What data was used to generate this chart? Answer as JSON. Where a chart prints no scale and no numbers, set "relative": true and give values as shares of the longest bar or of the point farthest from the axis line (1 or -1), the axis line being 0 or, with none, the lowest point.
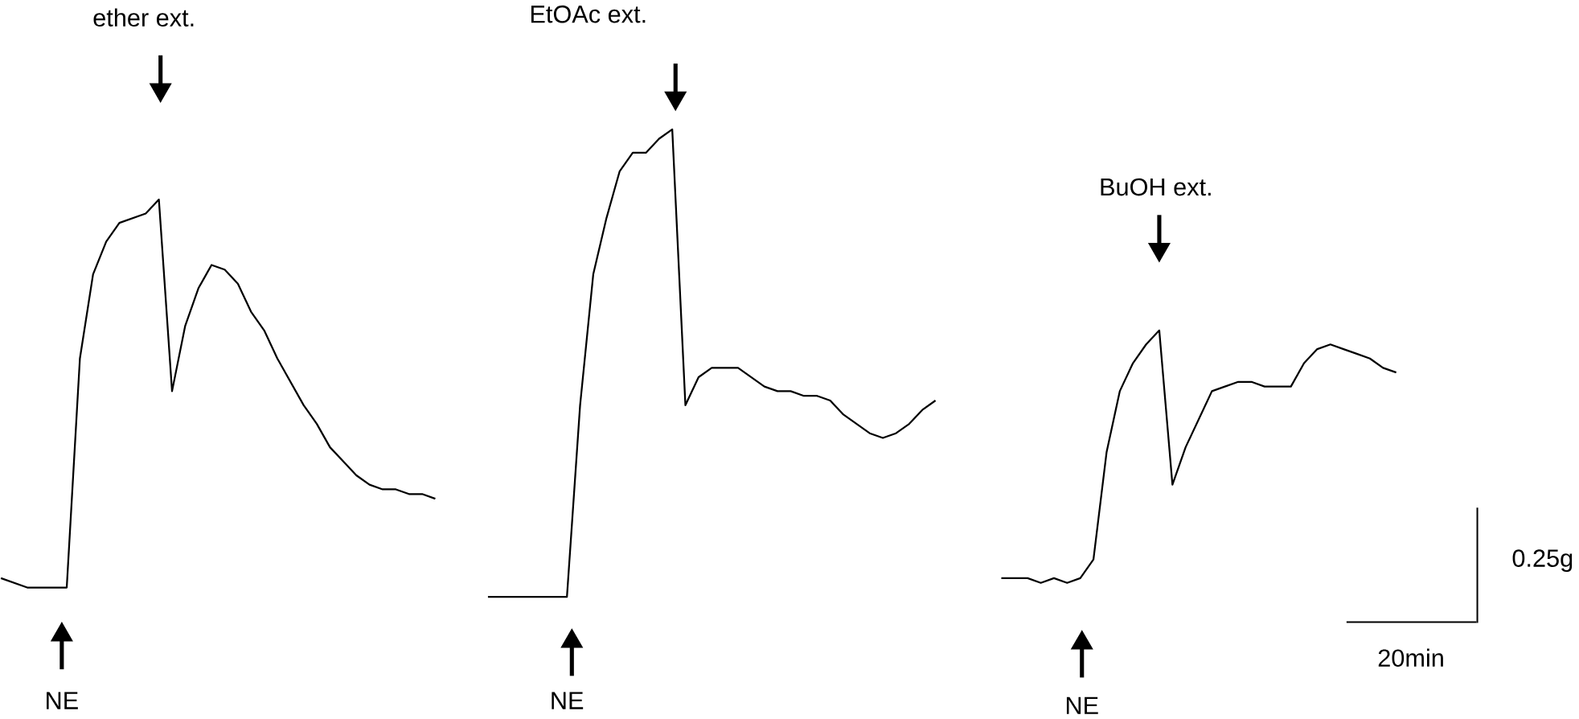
{
  "chart_data": {
    "type": "line",
    "relative": true,
    "marker": "none",
    "line_style": "solid",
    "categories": [
      null,
      null,
      null,
      null,
      null,
      null,
      null,
      null,
      null,
      null,
      null,
      null,
      null,
      null,
      null,
      null,
      null,
      null,
      null,
      null,
      null,
      null,
      null,
      null,
      null,
      null,
      null,
      null,
      null,
      null,
      null,
      null,
      null,
      null,
      null,
      null,
      null,
      null,
      null,
      null,
      null,
      null,
      null,
      null,
      null,
      null,
      null,
      null,
      null,
      null,
      null,
      null,
      null,
      null,
      null,
      null,
      null,
      null,
      null,
      null,
      null,
      null,
      null,
      null,
      null,
      null,
      null,
      null,
      null,
      null,
      null,
      null,
      null,
      null,
      null,
      null,
      null,
      null,
      null,
      null,
      null,
      null,
      null,
      null,
      null,
      null,
      null,
      null,
      null,
      null,
      null,
      null,
      null,
      null,
      null,
      null,
      null,
      null,
      null,
      null,
      null,
      null,
      null,
      null,
      null,
      null,
      null
    ],
    "series": [
      {
        "color": "#000000",
        "values": [
          0.04,
          0.03,
          0.02,
          0.02,
          0.02,
          0.02,
          0.51,
          0.69,
          0.76,
          0.8,
          0.81,
          0.82,
          0.85,
          0.44,
          0.58,
          0.66,
          0.71,
          0.7,
          0.67,
          0.61,
          0.57,
          0.51,
          0.46,
          0.41,
          0.37,
          0.32,
          0.29,
          0.26,
          0.24,
          0.23,
          0.23,
          0.22,
          0.22,
          0.21,
          null,
          null,
          null,
          null,
          null,
          null,
          null,
          null,
          null,
          null,
          null,
          null,
          null,
          null,
          null,
          null,
          null,
          null,
          null,
          null,
          null,
          null,
          null,
          null,
          null,
          null,
          null,
          null,
          null,
          null,
          null,
          null,
          null,
          null,
          null,
          null,
          null,
          null,
          null,
          null,
          null,
          null,
          null,
          null,
          null,
          null,
          null,
          null,
          null,
          null,
          null,
          null,
          null,
          null,
          null,
          null,
          null,
          null,
          null,
          null,
          null,
          null,
          null,
          null,
          null,
          null,
          null,
          null,
          null,
          null,
          null,
          null,
          null
        ]
      },
      {
        "color": "#000000",
        "values": [
          null,
          null,
          null,
          null,
          null,
          null,
          null,
          null,
          null,
          null,
          null,
          null,
          null,
          null,
          null,
          null,
          null,
          null,
          null,
          null,
          null,
          null,
          null,
          null,
          null,
          null,
          null,
          null,
          null,
          null,
          null,
          null,
          null,
          null,
          null,
          null,
          null,
          0.0,
          0.0,
          0.0,
          0.0,
          0.0,
          0.0,
          0.0,
          0.41,
          0.69,
          0.81,
          0.91,
          0.95,
          0.95,
          0.98,
          1.0,
          0.41,
          0.47,
          0.49,
          0.49,
          0.49,
          0.47,
          0.45,
          0.44,
          0.44,
          0.43,
          0.43,
          0.42,
          0.39,
          0.37,
          0.35,
          0.34,
          0.35,
          0.37,
          0.4,
          0.42,
          null,
          null,
          null,
          null,
          null,
          null,
          null,
          null,
          null,
          null,
          null,
          null,
          null,
          null,
          null,
          null,
          null,
          null,
          null,
          null,
          null,
          null,
          null,
          null,
          null,
          null,
          null,
          null,
          null,
          null,
          null,
          null,
          null,
          null,
          null
        ]
      },
      {
        "color": "#000000",
        "values": [
          null,
          null,
          null,
          null,
          null,
          null,
          null,
          null,
          null,
          null,
          null,
          null,
          null,
          null,
          null,
          null,
          null,
          null,
          null,
          null,
          null,
          null,
          null,
          null,
          null,
          null,
          null,
          null,
          null,
          null,
          null,
          null,
          null,
          null,
          null,
          null,
          null,
          null,
          null,
          null,
          null,
          null,
          null,
          null,
          null,
          null,
          null,
          null,
          null,
          null,
          null,
          null,
          null,
          null,
          null,
          null,
          null,
          null,
          null,
          null,
          null,
          null,
          null,
          null,
          null,
          null,
          null,
          null,
          null,
          null,
          null,
          null,
          null,
          null,
          null,
          null,
          0.04,
          0.04,
          0.04,
          0.03,
          0.04,
          0.03,
          0.04,
          0.08,
          0.31,
          0.44,
          0.5,
          0.54,
          0.57,
          0.24,
          0.32,
          0.38,
          0.44,
          0.45,
          0.46,
          0.46,
          0.45,
          0.45,
          0.45,
          0.5,
          0.53,
          0.54,
          0.53,
          0.52,
          0.51,
          0.49,
          0.48
        ]
      }
    ],
    "annotations": [
      "ether ext.",
      "EtOAc ext.",
      "BuOH ext.",
      "NE",
      "NE",
      "NE",
      "0.25g",
      "20min"
    ]
  }
}
